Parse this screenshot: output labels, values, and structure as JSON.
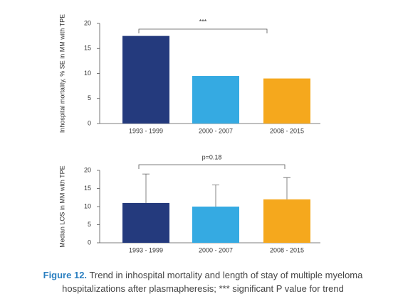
{
  "chart_data": [
    {
      "type": "bar",
      "ylabel": "Inhospital mortality, % SE in MM with TPE",
      "categories": [
        "1993 - 1999",
        "2000 - 2007",
        "2008 - 2015"
      ],
      "values": [
        17.5,
        9.5,
        9.0
      ],
      "colors": [
        "#243a7d",
        "#35aae2",
        "#f5a81d"
      ],
      "ylim": [
        0,
        20
      ],
      "yticks": [
        0,
        5,
        10,
        15,
        20
      ],
      "annotation": "***"
    },
    {
      "type": "bar",
      "ylabel": "Median LOS in MM with TPE",
      "categories": [
        "1993 - 1999",
        "2000 - 2007",
        "2008 - 2015"
      ],
      "values": [
        11,
        10,
        12
      ],
      "errors": [
        8,
        6,
        6
      ],
      "colors": [
        "#243a7d",
        "#35aae2",
        "#f5a81d"
      ],
      "ylim": [
        0,
        20
      ],
      "yticks": [
        0,
        5,
        10,
        15,
        20
      ],
      "annotation": "p=0.18"
    }
  ],
  "caption": {
    "label": "Figure 12.",
    "text": "Trend in inhospital mortality and length of stay of multiple myeloma hospitalizations after plasmapheresis; *** significant P value for trend"
  }
}
